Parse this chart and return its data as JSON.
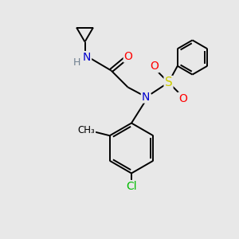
{
  "bg_color": "#e8e8e8",
  "bond_color": "#000000",
  "atom_colors": {
    "N": "#0000cc",
    "O": "#ff0000",
    "S": "#cccc00",
    "Cl": "#00bb00",
    "H": "#708090",
    "C": "#000000"
  },
  "lw": 1.4
}
